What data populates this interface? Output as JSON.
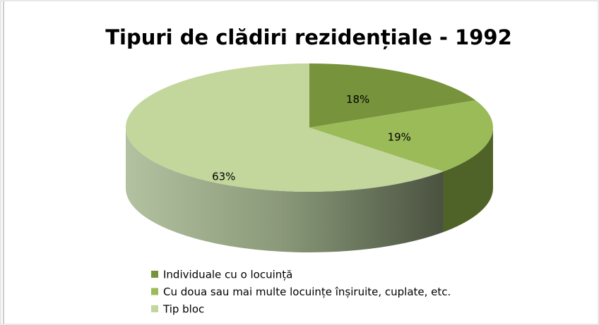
{
  "chart_data": {
    "type": "pie3d",
    "title": "Tipuri de clădiri rezidențiale - 1992",
    "categories": [
      "Individuale cu o locuință",
      "Cu doua sau mai multe locuințe înșiruite, cuplate, etc.",
      "Tip bloc"
    ],
    "values": [
      18,
      19,
      63
    ],
    "value_labels": [
      "18%",
      "19%",
      "63%"
    ],
    "colors": [
      "#77933c",
      "#9bbb59",
      "#c3d69b"
    ],
    "legend": "bottom"
  }
}
